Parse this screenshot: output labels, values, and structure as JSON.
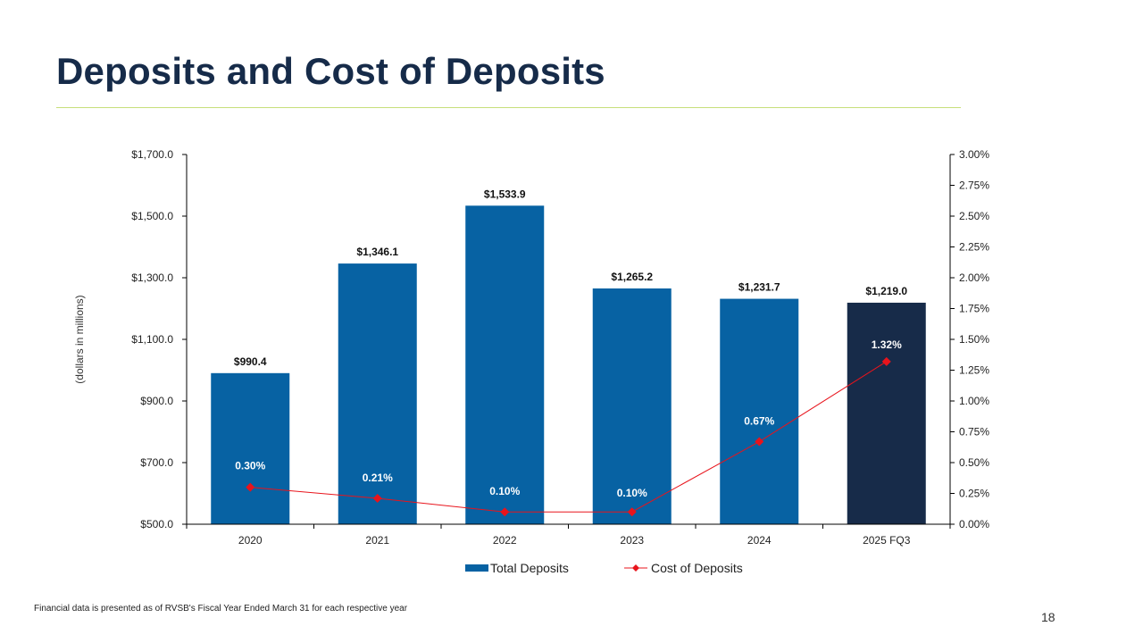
{
  "slide": {
    "title": "Deposits and Cost of Deposits",
    "footnote": "Financial data is presented as of RVSB's Fiscal Year Ended March 31 for each respective year",
    "page_number": "18"
  },
  "colors": {
    "bar": "#0762a3",
    "bar_highlight": "#172b49",
    "line": "#e8141c",
    "title": "#162b49",
    "rule": "#c6df7a"
  },
  "chart_data": {
    "type": "bar",
    "title": "",
    "categories": [
      "2020",
      "2021",
      "2022",
      "2023",
      "2024",
      "2025 FQ3"
    ],
    "ylabel": "(dollars in millions)",
    "ylim": [
      500,
      1700
    ],
    "y_ticks": [
      "$500.0",
      "$700.0",
      "$900.0",
      "$1,100.0",
      "$1,300.0",
      "$1,500.0",
      "$1,700.0"
    ],
    "y2lim": [
      0,
      3
    ],
    "y2_ticks": [
      "0.00%",
      "0.25%",
      "0.50%",
      "0.75%",
      "1.00%",
      "1.25%",
      "1.50%",
      "1.75%",
      "2.00%",
      "2.25%",
      "2.50%",
      "2.75%",
      "3.00%"
    ],
    "legend_position": "bottom",
    "series": [
      {
        "name": "Total Deposits",
        "type": "bar",
        "axis": "left",
        "values": [
          990.4,
          1346.1,
          1533.9,
          1265.2,
          1231.7,
          1219.0
        ],
        "labels": [
          "$990.4",
          "$1,346.1",
          "$1,533.9",
          "$1,265.2",
          "$1,231.7",
          "$1,219.0"
        ],
        "highlight_index": 5
      },
      {
        "name": "Cost of Deposits",
        "type": "line",
        "axis": "right",
        "values": [
          0.3,
          0.21,
          0.1,
          0.1,
          0.67,
          1.32
        ],
        "labels": [
          "0.30%",
          "0.21%",
          "0.10%",
          "0.10%",
          "0.67%",
          "1.32%"
        ]
      }
    ]
  }
}
